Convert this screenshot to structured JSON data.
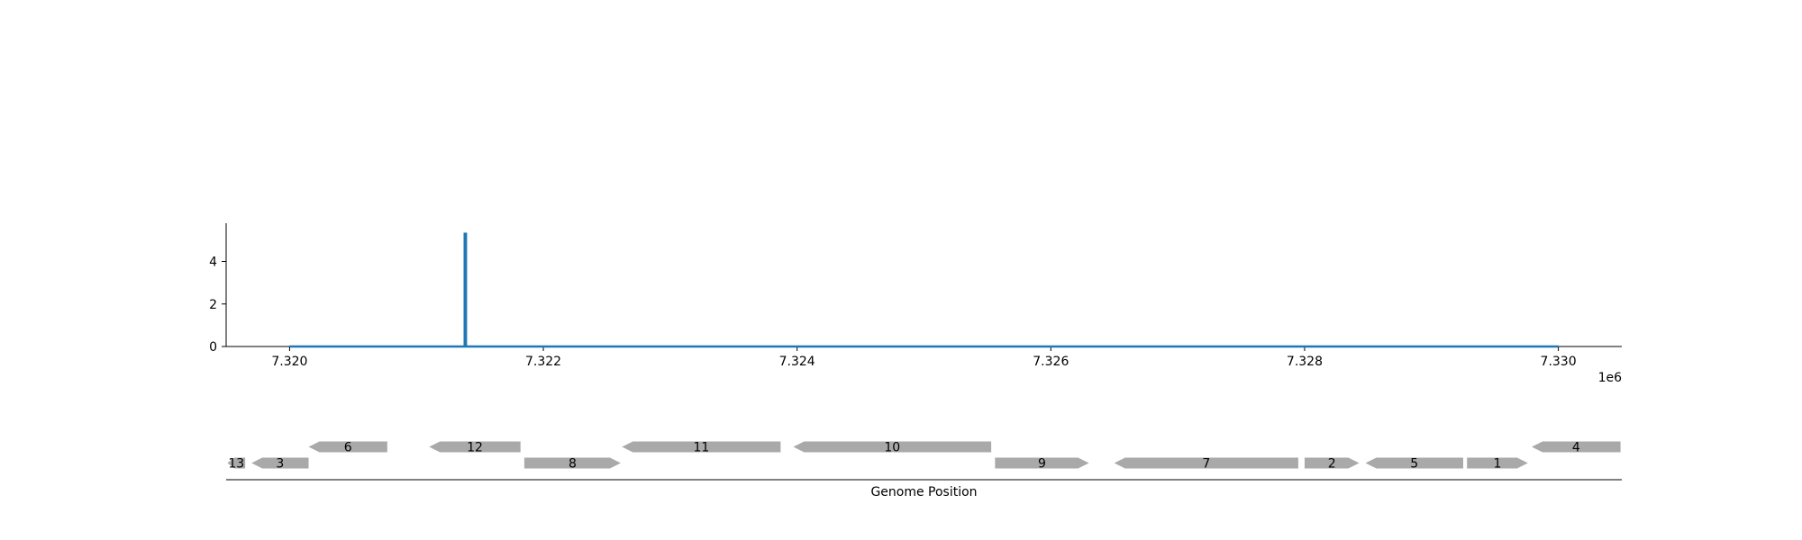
{
  "chart_data": [
    {
      "type": "line",
      "series": [
        {
          "values": [
            [
              7320000,
              0
            ],
            [
              7321380,
              0
            ],
            [
              7321380,
              5.3
            ],
            [
              7321390,
              5.3
            ],
            [
              7321390,
              0
            ],
            [
              7330000,
              0
            ]
          ]
        }
      ],
      "xlim": [
        7319500,
        7330500
      ],
      "ylim": [
        0,
        5.8
      ],
      "x_ticks": [
        7320000,
        7322000,
        7324000,
        7326000,
        7328000,
        7330000
      ],
      "x_tick_labels": [
        "7.320",
        "7.322",
        "7.324",
        "7.326",
        "7.328",
        "7.330"
      ],
      "x_offset_label": "1e6",
      "y_ticks": [
        0,
        2,
        4
      ],
      "y_tick_labels": [
        "0",
        "2",
        "4"
      ],
      "grid": false,
      "colors": {
        "line": "#1f77b4"
      }
    },
    {
      "type": "gene_track",
      "xlim": [
        7319500,
        7330500
      ],
      "xlabel": "Genome Position",
      "colors": {
        "gene": "#a9a9a9"
      },
      "genes": [
        {
          "label": "13",
          "start": 7319510,
          "end": 7319650,
          "strand": "-",
          "row": 0
        },
        {
          "label": "3",
          "start": 7319700,
          "end": 7320150,
          "strand": "-",
          "row": 0
        },
        {
          "label": "6",
          "start": 7320150,
          "end": 7320770,
          "strand": "-",
          "row": 1
        },
        {
          "label": "12",
          "start": 7321100,
          "end": 7321820,
          "strand": "-",
          "row": 1
        },
        {
          "label": "8",
          "start": 7321850,
          "end": 7322610,
          "strand": "+",
          "row": 0
        },
        {
          "label": "11",
          "start": 7322620,
          "end": 7323870,
          "strand": "-",
          "row": 1
        },
        {
          "label": "10",
          "start": 7323970,
          "end": 7325530,
          "strand": "-",
          "row": 1
        },
        {
          "label": "9",
          "start": 7325560,
          "end": 7326300,
          "strand": "+",
          "row": 0
        },
        {
          "label": "7",
          "start": 7326500,
          "end": 7327950,
          "strand": "-",
          "row": 0
        },
        {
          "label": "2",
          "start": 7328000,
          "end": 7328430,
          "strand": "+",
          "row": 0
        },
        {
          "label": "5",
          "start": 7328480,
          "end": 7329250,
          "strand": "-",
          "row": 0
        },
        {
          "label": "1",
          "start": 7329280,
          "end": 7329760,
          "strand": "+",
          "row": 0
        },
        {
          "label": "4",
          "start": 7329790,
          "end": 7330490,
          "strand": "-",
          "row": 1
        }
      ]
    }
  ]
}
